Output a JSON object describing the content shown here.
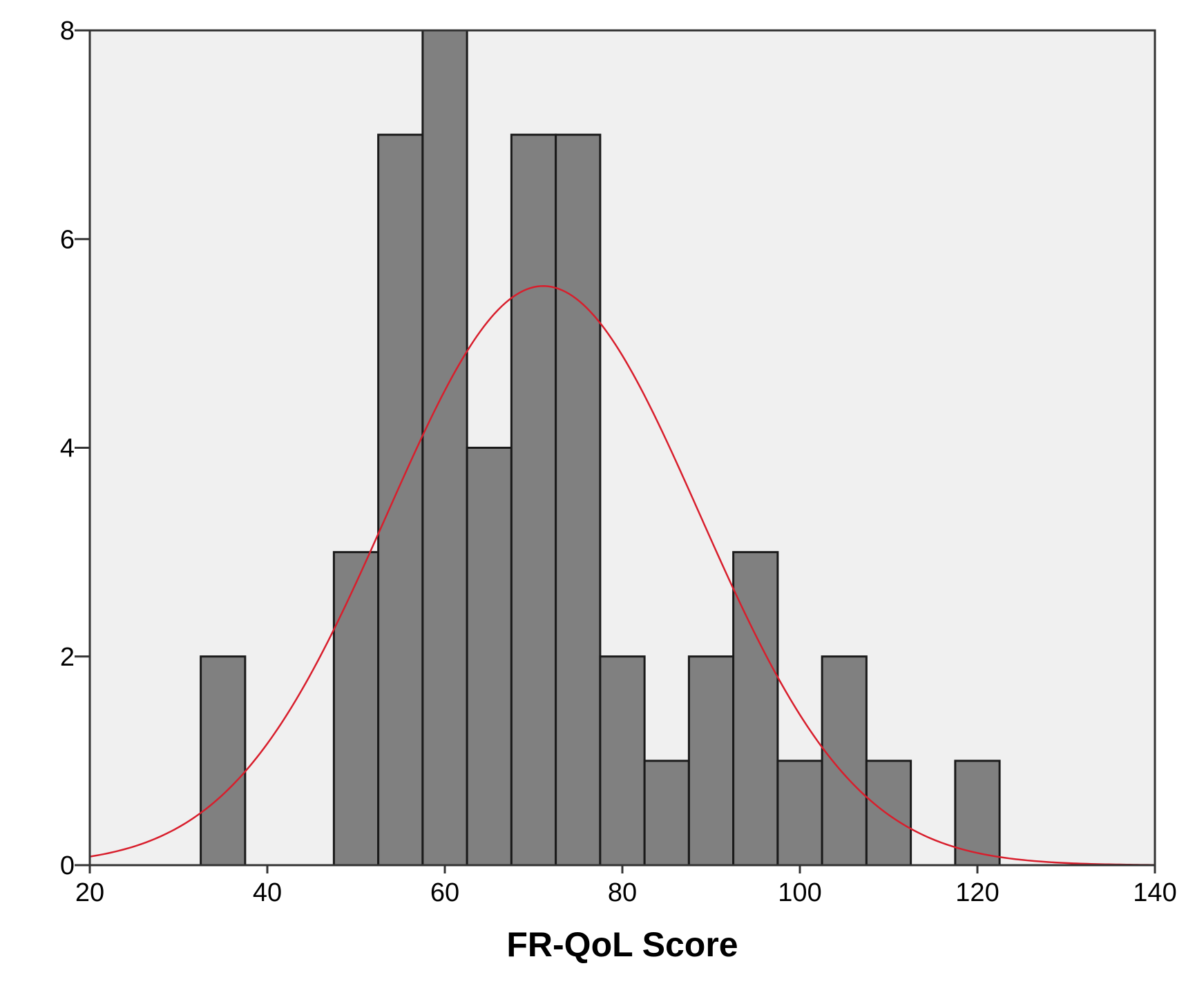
{
  "chart_data": {
    "type": "bar",
    "subtype": "histogram",
    "title": "",
    "xlabel": "FR-QoL Score",
    "ylabel": "",
    "xlim": [
      20,
      140
    ],
    "ylim": [
      0,
      8
    ],
    "bin_width": 5,
    "bins": [
      {
        "start": 32.5,
        "end": 37.5,
        "count": 2
      },
      {
        "start": 47.5,
        "end": 52.5,
        "count": 3
      },
      {
        "start": 52.5,
        "end": 57.5,
        "count": 7
      },
      {
        "start": 57.5,
        "end": 62.5,
        "count": 8
      },
      {
        "start": 62.5,
        "end": 67.5,
        "count": 4
      },
      {
        "start": 67.5,
        "end": 72.5,
        "count": 7
      },
      {
        "start": 72.5,
        "end": 77.5,
        "count": 7
      },
      {
        "start": 77.5,
        "end": 82.5,
        "count": 2
      },
      {
        "start": 82.5,
        "end": 87.5,
        "count": 1
      },
      {
        "start": 87.5,
        "end": 92.5,
        "count": 2
      },
      {
        "start": 92.5,
        "end": 97.5,
        "count": 3
      },
      {
        "start": 97.5,
        "end": 102.5,
        "count": 1
      },
      {
        "start": 102.5,
        "end": 107.5,
        "count": 2
      },
      {
        "start": 107.5,
        "end": 112.5,
        "count": 1
      },
      {
        "start": 117.5,
        "end": 122.5,
        "count": 1
      }
    ],
    "x_ticks": [
      "20",
      "40",
      "60",
      "80",
      "100",
      "120",
      "140"
    ],
    "y_ticks": [
      "0",
      "2",
      "4",
      "6",
      "8"
    ],
    "normal_curve": {
      "mean": 71.1,
      "sd": 17.6,
      "peak": 5.55
    },
    "grid": false,
    "legend": "none",
    "colors": {
      "plot_background": "#f0f0f0",
      "bar_fill": "#808080",
      "bar_edge": "#1a1a1a",
      "curve": "#d81e2c",
      "axis": "#333333"
    }
  }
}
